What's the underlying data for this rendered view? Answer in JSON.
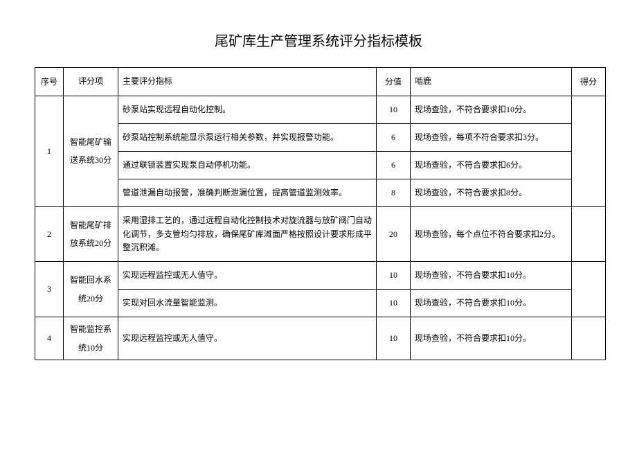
{
  "title": "尾矿库生产管理系统评分指标模板",
  "headers": {
    "seq": "序号",
    "item": "评分项",
    "indicator": "主要评分指标",
    "score": "分值",
    "note": "啮鹿",
    "result": "得分"
  },
  "rows": [
    {
      "seq": "1",
      "item": "智能尾矿输送系统30分",
      "sub": [
        {
          "indicator": "砂泵站实现远程自动化控制。",
          "score": "10",
          "note": "现场查验，不符合要求扣10分。"
        },
        {
          "indicator": "砂泵站控制系统能显示泵运行相关参数，并实现报警功能。",
          "score": "6",
          "note": "现场查验，每项不符合要求扣3分。"
        },
        {
          "indicator": "通过联锁装置实现泵自动停机功能。",
          "score": "6",
          "note": "现场查验，不符合要求扣6分。"
        },
        {
          "indicator": "管道泄漏自动报警，准确判断泄漏位置，提高管道监测效率。",
          "score": "8",
          "note": "现场查验，不符合要求扣8分。"
        }
      ]
    },
    {
      "seq": "2",
      "item": "智能尾矿排放系统20分",
      "sub": [
        {
          "indicator": "采用湿排工艺的，通过远程自动化控制技术对旋流器与放矿阀门自动化调节，多支管均匀排放，确保尾矿库滩面严格按照设计要求形成平整沉积滩。",
          "score": "20",
          "note": "现场查验，每个点位不符合要求扣2分。"
        }
      ]
    },
    {
      "seq": "3",
      "item": "智能回水系统20分",
      "sub": [
        {
          "indicator": "实现远程监控或无人值守。",
          "score": "10",
          "note": "现场查验，不符合要求扣10分。"
        },
        {
          "indicator": "实现对回水流量智能监测。",
          "score": "10",
          "note": "现场查验，不符合要求扣10分。"
        }
      ]
    },
    {
      "seq": "4",
      "item": "智能监控系统10分",
      "sub": [
        {
          "indicator": "实现远程监控或无人值守。",
          "score": "10",
          "note": "现场查验，不符合要求扣10分。"
        }
      ]
    }
  ]
}
